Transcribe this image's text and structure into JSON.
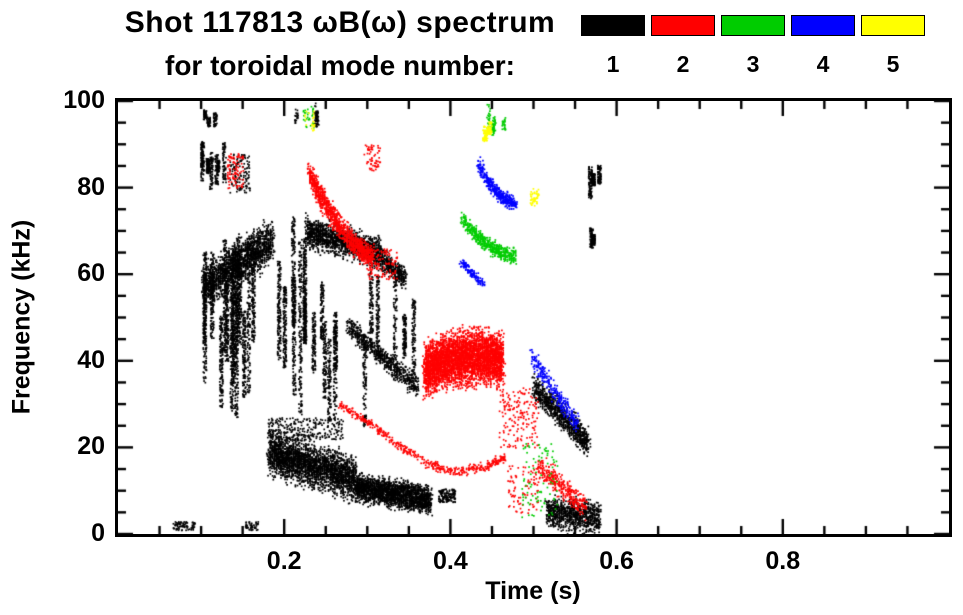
{
  "header": {
    "line1": "Shot 117813 ωB(ω) spectrum",
    "line2": "for toroidal mode number:"
  },
  "legend": {
    "modes": [
      {
        "label": "1",
        "color": "#000000"
      },
      {
        "label": "2",
        "color": "#ff0000"
      },
      {
        "label": "3",
        "color": "#00cc00"
      },
      {
        "label": "4",
        "color": "#0000ff"
      },
      {
        "label": "5",
        "color": "#ffff00"
      }
    ]
  },
  "chart_data": {
    "type": "scatter",
    "title": "Shot 117813 ωB(ω) spectrum for toroidal mode number: 1-5",
    "xlabel": "Time (s)",
    "ylabel": "Frequency (kHz)",
    "xlim": [
      0.0,
      1.0
    ],
    "ylim": [
      0,
      100
    ],
    "xticks": [
      {
        "v": 0.2,
        "label": "0.2"
      },
      {
        "v": 0.4,
        "label": "0.4"
      },
      {
        "v": 0.6,
        "label": "0.6"
      },
      {
        "v": 0.8,
        "label": "0.8"
      }
    ],
    "yticks": [
      {
        "v": 0,
        "label": "0"
      },
      {
        "v": 20,
        "label": "20"
      },
      {
        "v": 40,
        "label": "40"
      },
      {
        "v": 60,
        "label": "60"
      },
      {
        "v": 80,
        "label": "80"
      },
      {
        "v": 100,
        "label": "100"
      }
    ],
    "x_minor": 0.05,
    "y_minor": 5,
    "grid": false,
    "legend_position": "top-right",
    "colors": [
      "#000000",
      "#ff0000",
      "#00cc00",
      "#0000ff",
      "#ffff00"
    ],
    "series": [
      {
        "name": "n=1",
        "color": "#000000"
      },
      {
        "name": "n=2",
        "color": "#ff0000"
      },
      {
        "name": "n=3",
        "color": "#00cc00"
      },
      {
        "name": "n=4",
        "color": "#0000ff"
      },
      {
        "name": "n=5",
        "color": "#ffff00"
      }
    ],
    "clusters": [
      {
        "m": 1,
        "st": "vs",
        "t": [
          0.1,
          0.13
        ],
        "f": [
          78,
          91
        ],
        "n": 500,
        "k": 8
      },
      {
        "m": 1,
        "st": "vs",
        "t": [
          0.103,
          0.12
        ],
        "f": [
          93,
          100
        ],
        "n": 140,
        "k": 3
      },
      {
        "m": 1,
        "st": "sc",
        "t": [
          0.133,
          0.158
        ],
        "f": [
          79,
          88
        ],
        "n": 130
      },
      {
        "m": 1,
        "st": "vs",
        "t": [
          0.098,
          0.175
        ],
        "f": [
          20,
          72
        ],
        "n": 2400,
        "k": 16
      },
      {
        "m": 1,
        "st": "bd",
        "p": [
          [
            0.102,
            57
          ],
          [
            0.185,
            68
          ]
        ],
        "w": 12,
        "n": 1700
      },
      {
        "m": 1,
        "st": "vs",
        "t": [
          0.188,
          0.225
        ],
        "f": [
          24,
          74
        ],
        "n": 1100,
        "k": 7
      },
      {
        "m": 1,
        "st": "bd",
        "p": [
          [
            0.225,
            70
          ],
          [
            0.315,
            65
          ]
        ],
        "w": 9,
        "n": 1500
      },
      {
        "m": 1,
        "st": "bd",
        "p": [
          [
            0.315,
            64
          ],
          [
            0.345,
            59
          ]
        ],
        "w": 6,
        "n": 380
      },
      {
        "m": 1,
        "st": "vs",
        "t": [
          0.225,
          0.365
        ],
        "f": [
          25,
          62
        ],
        "n": 1300,
        "k": 12
      },
      {
        "m": 1,
        "st": "bd",
        "p": [
          [
            0.275,
            48
          ],
          [
            0.36,
            34
          ]
        ],
        "w": 6,
        "n": 650
      },
      {
        "m": 1,
        "st": "bd",
        "p": [
          [
            0.18,
            19
          ],
          [
            0.285,
            13
          ]
        ],
        "w": 13,
        "n": 2600
      },
      {
        "m": 1,
        "st": "bd",
        "p": [
          [
            0.285,
            11
          ],
          [
            0.375,
            8
          ]
        ],
        "w": 8,
        "n": 2200
      },
      {
        "m": 1,
        "st": "sc",
        "t": [
          0.18,
          0.27
        ],
        "f": [
          22,
          27
        ],
        "n": 260
      },
      {
        "m": 1,
        "st": "sc",
        "t": [
          0.385,
          0.405
        ],
        "f": [
          7.5,
          10.5
        ],
        "n": 140
      },
      {
        "m": 1,
        "st": "bd",
        "p": [
          [
            0.5,
            34
          ],
          [
            0.565,
            21
          ]
        ],
        "w": 8,
        "n": 900
      },
      {
        "m": 1,
        "st": "bd",
        "p": [
          [
            0.515,
            5
          ],
          [
            0.578,
            4
          ]
        ],
        "w": 9,
        "n": 900
      },
      {
        "m": 1,
        "st": "vs",
        "t": [
          0.565,
          0.583
        ],
        "f": [
          76,
          86
        ],
        "n": 260,
        "k": 3
      },
      {
        "m": 1,
        "st": "vs",
        "t": [
          0.567,
          0.58
        ],
        "f": [
          64,
          72
        ],
        "n": 150,
        "k": 2
      },
      {
        "m": 1,
        "st": "sc",
        "t": [
          0.065,
          0.092
        ],
        "f": [
          1,
          3
        ],
        "n": 80
      },
      {
        "m": 1,
        "st": "sc",
        "t": [
          0.152,
          0.168
        ],
        "f": [
          1,
          3
        ],
        "n": 50
      },
      {
        "m": 1,
        "st": "vs",
        "t": [
          0.2,
          0.245
        ],
        "f": [
          92,
          100
        ],
        "n": 80,
        "k": 4
      },
      {
        "m": 2,
        "st": "sc",
        "t": [
          0.13,
          0.15
        ],
        "f": [
          80,
          88
        ],
        "n": 90
      },
      {
        "m": 2,
        "st": "bd",
        "p": [
          [
            0.228,
            84
          ],
          [
            0.305,
            64
          ]
        ],
        "w": 7,
        "n": 1100,
        "bend": -3
      },
      {
        "m": 2,
        "st": "sc",
        "t": [
          0.295,
          0.315
        ],
        "f": [
          84,
          90
        ],
        "n": 60
      },
      {
        "m": 2,
        "st": "sc",
        "t": [
          0.3,
          0.335
        ],
        "f": [
          59,
          66
        ],
        "n": 120
      },
      {
        "m": 2,
        "st": "cv",
        "pts": [
          [
            0.265,
            30
          ],
          [
            0.3,
            26
          ],
          [
            0.335,
            21
          ],
          [
            0.37,
            16.5
          ],
          [
            0.405,
            14.5
          ],
          [
            0.44,
            15.5
          ],
          [
            0.465,
            18
          ]
        ],
        "w": 1.6,
        "n": 480
      },
      {
        "m": 2,
        "st": "bd",
        "p": [
          [
            0.368,
            38
          ],
          [
            0.462,
            40
          ]
        ],
        "w": 15,
        "n": 4200,
        "bend": 2
      },
      {
        "m": 2,
        "st": "sc",
        "t": [
          0.458,
          0.505
        ],
        "f": [
          20,
          34
        ],
        "n": 170
      },
      {
        "m": 2,
        "st": "sc",
        "t": [
          0.468,
          0.505
        ],
        "f": [
          5,
          16
        ],
        "n": 90
      },
      {
        "m": 2,
        "st": "bd",
        "p": [
          [
            0.505,
            16
          ],
          [
            0.562,
            6
          ]
        ],
        "w": 7,
        "n": 330
      },
      {
        "m": 3,
        "st": "bd",
        "p": [
          [
            0.413,
            73
          ],
          [
            0.477,
            64.5
          ]
        ],
        "w": 4.5,
        "n": 520,
        "bend": -2
      },
      {
        "m": 3,
        "st": "vs",
        "t": [
          0.44,
          0.465
        ],
        "f": [
          92,
          100
        ],
        "n": 90,
        "k": 4
      },
      {
        "m": 3,
        "st": "sc",
        "t": [
          0.485,
          0.528
        ],
        "f": [
          4,
          21
        ],
        "n": 90
      },
      {
        "m": 3,
        "st": "sc",
        "t": [
          0.222,
          0.235
        ],
        "f": [
          94,
          99
        ],
        "n": 30
      },
      {
        "m": 4,
        "st": "bd",
        "p": [
          [
            0.433,
            85.5
          ],
          [
            0.478,
            76.5
          ]
        ],
        "w": 4.2,
        "n": 430,
        "bend": -2
      },
      {
        "m": 4,
        "st": "bd",
        "p": [
          [
            0.412,
            63
          ],
          [
            0.438,
            58
          ]
        ],
        "w": 2.5,
        "n": 130
      },
      {
        "m": 4,
        "st": "bd",
        "p": [
          [
            0.497,
            41
          ],
          [
            0.552,
            25
          ]
        ],
        "w": 6,
        "n": 280
      },
      {
        "m": 5,
        "st": "vs",
        "t": [
          0.436,
          0.458
        ],
        "f": [
          88,
          97
        ],
        "n": 110,
        "k": 4
      },
      {
        "m": 5,
        "st": "sc",
        "t": [
          0.494,
          0.506
        ],
        "f": [
          76,
          80
        ],
        "n": 45
      },
      {
        "m": 5,
        "st": "sc",
        "t": [
          0.224,
          0.236
        ],
        "f": [
          93,
          98
        ],
        "n": 25
      }
    ]
  }
}
